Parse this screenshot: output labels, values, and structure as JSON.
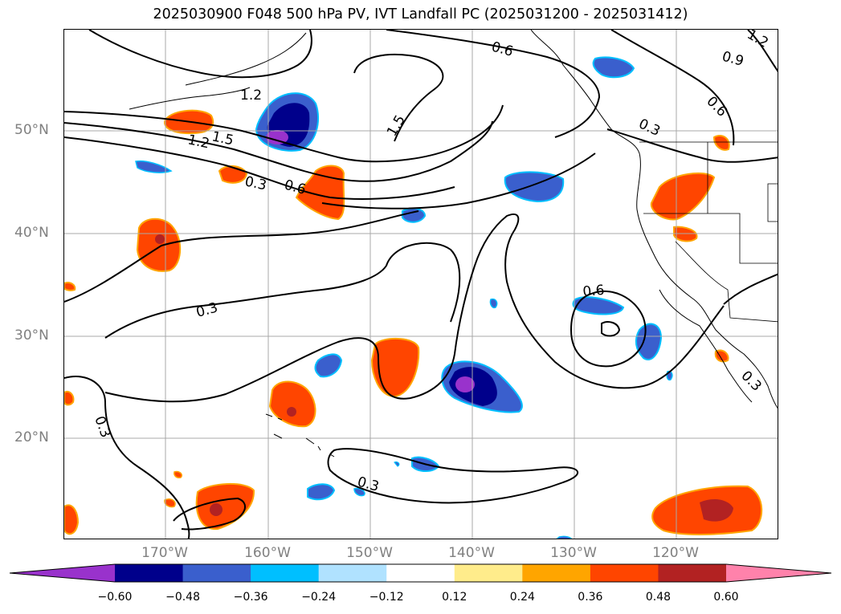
{
  "title": "2025030900 F048 500 hPa PV, IVT Landfall PC (2025031200 - 2025031412)",
  "lat_labels": [
    "50°N",
    "40°N",
    "30°N",
    "20°N"
  ],
  "lon_labels": [
    "170°W",
    "160°W",
    "150°W",
    "140°W",
    "130°W",
    "120°W"
  ],
  "contour_labels": [
    "1.2",
    "1.5",
    "1.2",
    "0.3",
    "0.6",
    "1.5",
    "0.6",
    "0.3",
    "0.9",
    "0.6",
    "0.3",
    "0.6",
    "0.3",
    "0.3",
    "0.3",
    "1.2"
  ],
  "colorbar": {
    "ticks": [
      "−0.60",
      "−0.48",
      "−0.36",
      "−0.24",
      "−0.12",
      "0.12",
      "0.24",
      "0.36",
      "0.48",
      "0.60"
    ],
    "colors": [
      "#9932cc",
      "#00008b",
      "#3a5fcd",
      "#00bfff",
      "#b0e2ff",
      "#ffffff",
      "#ffec8b",
      "#ffa500",
      "#ff4500",
      "#b22222",
      "#ff82ab"
    ]
  },
  "colors": {
    "contour": "#000000",
    "grid": "#a9a9a9",
    "axis_label": "#808080"
  }
}
